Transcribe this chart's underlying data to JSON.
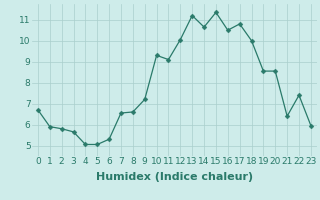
{
  "x": [
    0,
    1,
    2,
    3,
    4,
    5,
    6,
    7,
    8,
    9,
    10,
    11,
    12,
    13,
    14,
    15,
    16,
    17,
    18,
    19,
    20,
    21,
    22,
    23
  ],
  "y": [
    6.7,
    5.9,
    5.8,
    5.65,
    5.05,
    5.05,
    5.3,
    6.55,
    6.6,
    7.2,
    9.3,
    9.1,
    10.05,
    11.2,
    10.65,
    11.35,
    10.5,
    10.8,
    10.0,
    8.55,
    8.55,
    6.4,
    7.4,
    5.95
  ],
  "line_color": "#2a7a6a",
  "marker": "D",
  "marker_size": 2.5,
  "bg_color": "#ceecea",
  "grid_color": "#aacfcc",
  "xlabel": "Humidex (Indice chaleur)",
  "xlim": [
    -0.5,
    23.5
  ],
  "ylim": [
    4.5,
    11.75
  ],
  "yticks": [
    5,
    6,
    7,
    8,
    9,
    10,
    11
  ],
  "xticks": [
    0,
    1,
    2,
    3,
    4,
    5,
    6,
    7,
    8,
    9,
    10,
    11,
    12,
    13,
    14,
    15,
    16,
    17,
    18,
    19,
    20,
    21,
    22,
    23
  ],
  "tick_fontsize": 6.5,
  "label_fontsize": 8
}
